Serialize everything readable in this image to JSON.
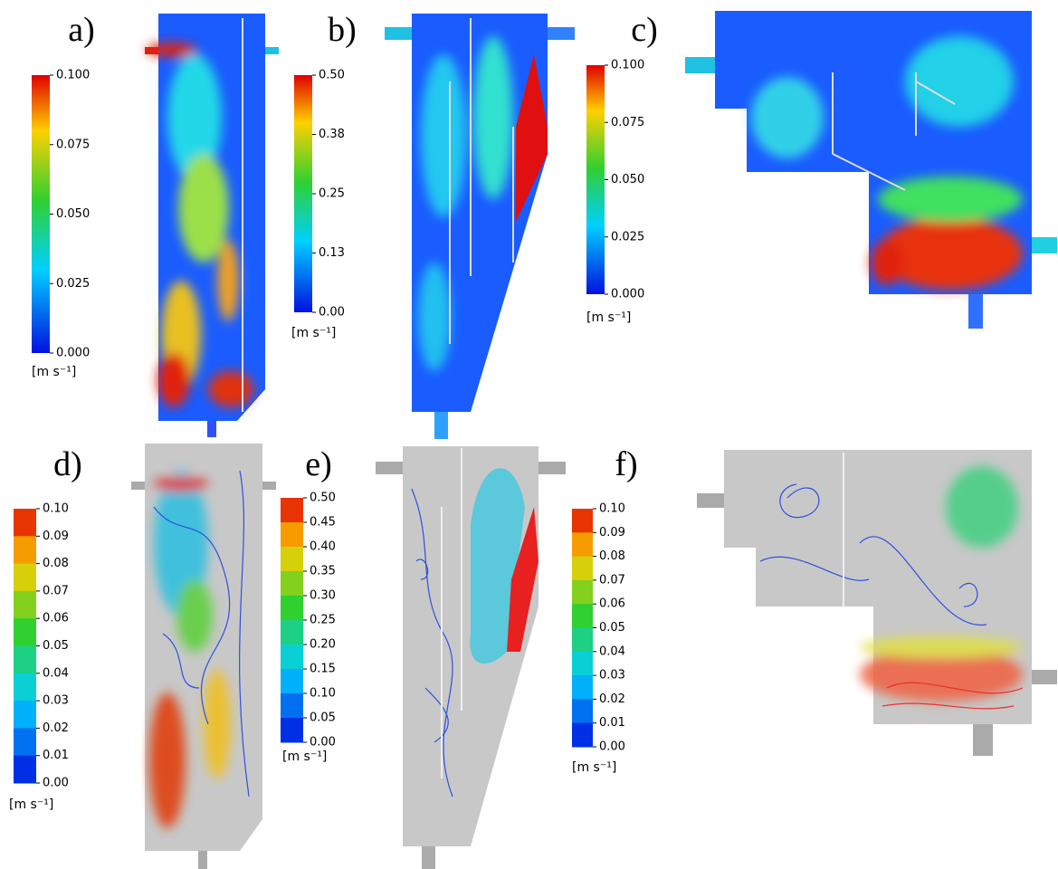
{
  "panels": [
    {
      "label": "a)",
      "colorbar": {
        "ticks": [
          "0.100",
          "0.075",
          "0.050",
          "0.025",
          "0.000"
        ],
        "unit": "[m s⁻¹]"
      }
    },
    {
      "label": "b)",
      "colorbar": {
        "ticks": [
          "0.50",
          "0.38",
          "0.25",
          "0.13",
          "0.00"
        ],
        "unit": "[m s⁻¹]"
      }
    },
    {
      "label": "c)",
      "colorbar": {
        "ticks": [
          "0.100",
          "0.075",
          "0.050",
          "0.025",
          "0.000"
        ],
        "unit": "[m s⁻¹]"
      }
    },
    {
      "label": "d)",
      "colorbar": {
        "ticks": [
          "0.10",
          "0.09",
          "0.08",
          "0.07",
          "0.06",
          "0.05",
          "0.04",
          "0.03",
          "0.02",
          "0.01",
          "0.00"
        ],
        "unit": "[m s⁻¹]"
      }
    },
    {
      "label": "e)",
      "colorbar": {
        "ticks": [
          "0.50",
          "0.45",
          "0.40",
          "0.35",
          "0.30",
          "0.25",
          "0.20",
          "0.15",
          "0.10",
          "0.05",
          "0.00"
        ],
        "unit": "[m s⁻¹]"
      }
    },
    {
      "label": "f)",
      "colorbar": {
        "ticks": [
          "0.10",
          "0.09",
          "0.08",
          "0.07",
          "0.06",
          "0.05",
          "0.04",
          "0.03",
          "0.02",
          "0.01",
          "0.00"
        ],
        "unit": "[m s⁻¹]"
      }
    }
  ]
}
